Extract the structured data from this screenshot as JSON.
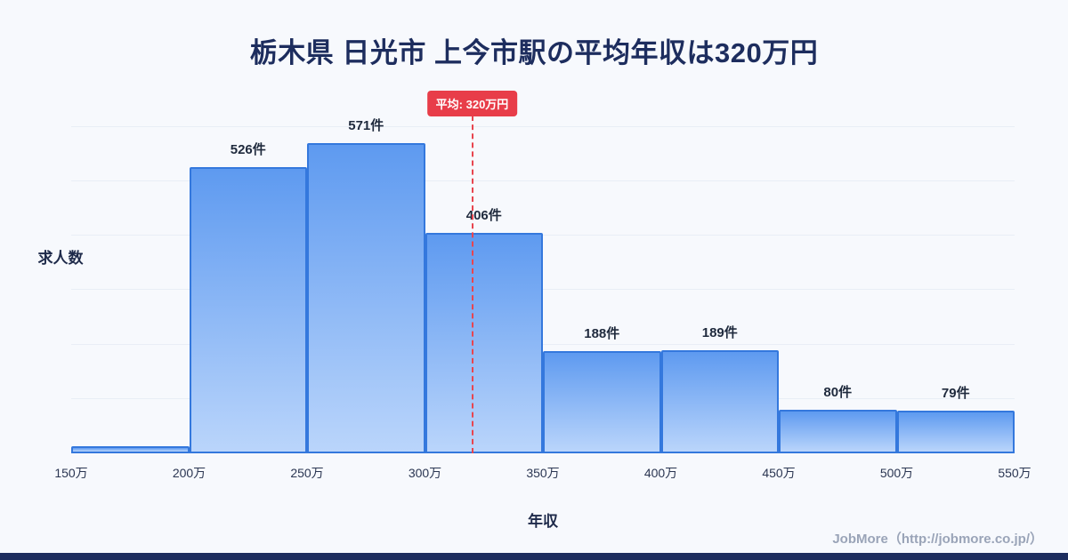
{
  "page": {
    "title": "栃木県 日光市 上今市駅の平均年収は320万円",
    "footer_credit": "JobMore（http://jobmore.co.jp/）"
  },
  "chart_data": {
    "type": "bar",
    "title": "栃木県 日光市 上今市駅の平均年収は320万円",
    "xlabel": "年収",
    "ylabel": "求人数",
    "x_tick_labels": [
      "150万",
      "200万",
      "250万",
      "300万",
      "350万",
      "400万",
      "450万",
      "500万",
      "550万"
    ],
    "bins": [
      {
        "range": "150万-200万",
        "value": 13,
        "label": ""
      },
      {
        "range": "200万-250万",
        "value": 526,
        "label": "526件"
      },
      {
        "range": "250万-300万",
        "value": 571,
        "label": "571件"
      },
      {
        "range": "300万-350万",
        "value": 406,
        "label": "406件"
      },
      {
        "range": "350万-400万",
        "value": 188,
        "label": "188件"
      },
      {
        "range": "400万-450万",
        "value": 189,
        "label": "189件"
      },
      {
        "range": "450万-500万",
        "value": 80,
        "label": "80件"
      },
      {
        "range": "500万-550万",
        "value": 79,
        "label": "79件"
      }
    ],
    "average_line": {
      "value": 320,
      "value_label": "平均: 320万円",
      "x_min": 150,
      "x_max": 550
    },
    "ylim": [
      0,
      670
    ],
    "grid": true,
    "legend": "none",
    "colors": {
      "bar_fill_top": "#5e9af0",
      "bar_fill_bottom": "#bad5fb",
      "bar_border": "#3478dd",
      "average_line": "#e8454f",
      "average_badge_bg": "#e83d49",
      "title_text": "#1d2d5e",
      "background": "#f7f9fd",
      "footer_text": "#9aa4b8"
    }
  }
}
